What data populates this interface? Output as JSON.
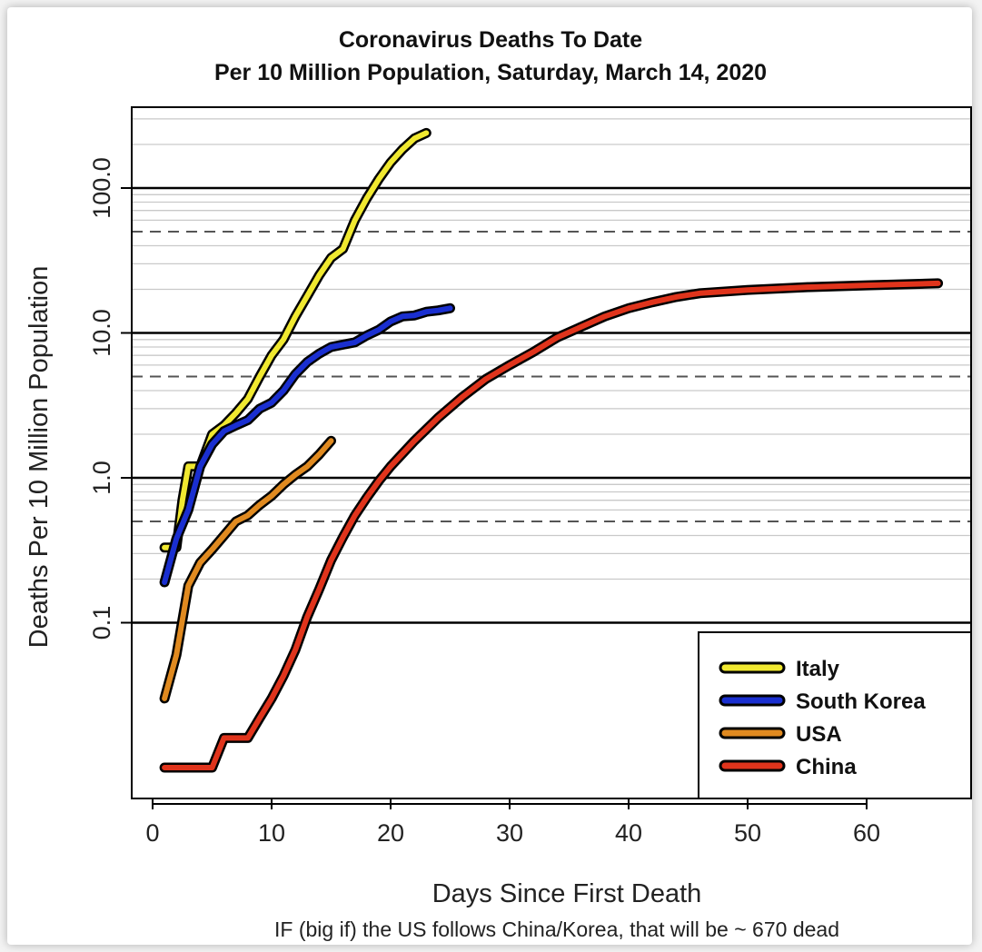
{
  "chart_data": {
    "type": "line",
    "title": "Coronavirus Deaths To Date",
    "subtitle": "Per 10 Million Population, Saturday, March 14, 2020",
    "xlabel": "Days Since First Death",
    "ylabel": "Deaths Per 10 Million Population",
    "note": "IF (big if) the US follows China/Korea, that will be ~ 670 dead",
    "y_scale": "log",
    "xlim": [
      -1,
      70
    ],
    "ylim": [
      0.01,
      400
    ],
    "x_ticks": [
      0,
      10,
      20,
      30,
      40,
      50,
      60
    ],
    "x_tick_labels": [
      "0",
      "10",
      "20",
      "30",
      "40",
      "50",
      "60"
    ],
    "y_ticks": [
      0.1,
      1,
      10,
      100
    ],
    "y_tick_labels": [
      "0.1",
      "1.0",
      "10.0",
      "100.0"
    ],
    "grid": "horizontal log gridlines; solid at decades, dashed at 0.5, 5, 50",
    "legend_position": "bottom-right",
    "series": [
      {
        "name": "Italy",
        "color": "#f0e830",
        "points": [
          [
            1,
            0.33
          ],
          [
            2,
            0.33
          ],
          [
            2.5,
            0.7
          ],
          [
            3,
            1.2
          ],
          [
            4,
            1.2
          ],
          [
            5,
            2.0
          ],
          [
            6,
            2.3
          ],
          [
            7,
            2.8
          ],
          [
            8,
            3.5
          ],
          [
            9,
            5.0
          ],
          [
            10,
            7.0
          ],
          [
            11,
            9.0
          ],
          [
            12,
            13
          ],
          [
            13,
            18
          ],
          [
            14,
            25
          ],
          [
            15,
            33
          ],
          [
            16,
            38
          ],
          [
            17,
            60
          ],
          [
            18,
            85
          ],
          [
            19,
            115
          ],
          [
            20,
            150
          ],
          [
            21,
            185
          ],
          [
            22,
            220
          ],
          [
            23,
            240
          ]
        ]
      },
      {
        "name": "South Korea",
        "color": "#1a2fd0",
        "points": [
          [
            1,
            0.19
          ],
          [
            2,
            0.38
          ],
          [
            3,
            0.6
          ],
          [
            4,
            1.2
          ],
          [
            5,
            1.7
          ],
          [
            6,
            2.1
          ],
          [
            7,
            2.3
          ],
          [
            8,
            2.5
          ],
          [
            9,
            3.0
          ],
          [
            10,
            3.3
          ],
          [
            11,
            4.0
          ],
          [
            12,
            5.2
          ],
          [
            13,
            6.3
          ],
          [
            14,
            7.2
          ],
          [
            15,
            8.0
          ],
          [
            16,
            8.3
          ],
          [
            17,
            8.6
          ],
          [
            18,
            9.6
          ],
          [
            19,
            10.5
          ],
          [
            20,
            12
          ],
          [
            21,
            13
          ],
          [
            22,
            13.2
          ],
          [
            23,
            14
          ],
          [
            24,
            14.3
          ],
          [
            25,
            14.8
          ]
        ]
      },
      {
        "name": "USA",
        "color": "#e08a20",
        "points": [
          [
            1,
            0.03
          ],
          [
            2,
            0.06
          ],
          [
            3,
            0.18
          ],
          [
            4,
            0.26
          ],
          [
            5,
            0.32
          ],
          [
            6,
            0.4
          ],
          [
            7,
            0.5
          ],
          [
            8,
            0.55
          ],
          [
            9,
            0.65
          ],
          [
            10,
            0.75
          ],
          [
            11,
            0.9
          ],
          [
            12,
            1.05
          ],
          [
            13,
            1.2
          ],
          [
            14,
            1.45
          ],
          [
            15,
            1.8
          ]
        ]
      },
      {
        "name": "China",
        "color": "#e0341c",
        "points": [
          [
            1,
            0.01
          ],
          [
            5,
            0.01
          ],
          [
            6,
            0.016
          ],
          [
            8,
            0.016
          ],
          [
            9,
            0.022
          ],
          [
            10,
            0.03
          ],
          [
            11,
            0.043
          ],
          [
            12,
            0.065
          ],
          [
            13,
            0.11
          ],
          [
            14,
            0.17
          ],
          [
            15,
            0.27
          ],
          [
            16,
            0.39
          ],
          [
            17,
            0.55
          ],
          [
            18,
            0.73
          ],
          [
            19,
            0.95
          ],
          [
            20,
            1.2
          ],
          [
            22,
            1.8
          ],
          [
            24,
            2.6
          ],
          [
            26,
            3.6
          ],
          [
            28,
            4.8
          ],
          [
            30,
            6.0
          ],
          [
            32,
            7.4
          ],
          [
            34,
            9.3
          ],
          [
            36,
            11
          ],
          [
            38,
            13
          ],
          [
            40,
            14.8
          ],
          [
            42,
            16.3
          ],
          [
            44,
            17.7
          ],
          [
            46,
            18.8
          ],
          [
            50,
            19.8
          ],
          [
            55,
            20.7
          ],
          [
            60,
            21.3
          ],
          [
            66,
            22
          ]
        ]
      }
    ]
  }
}
